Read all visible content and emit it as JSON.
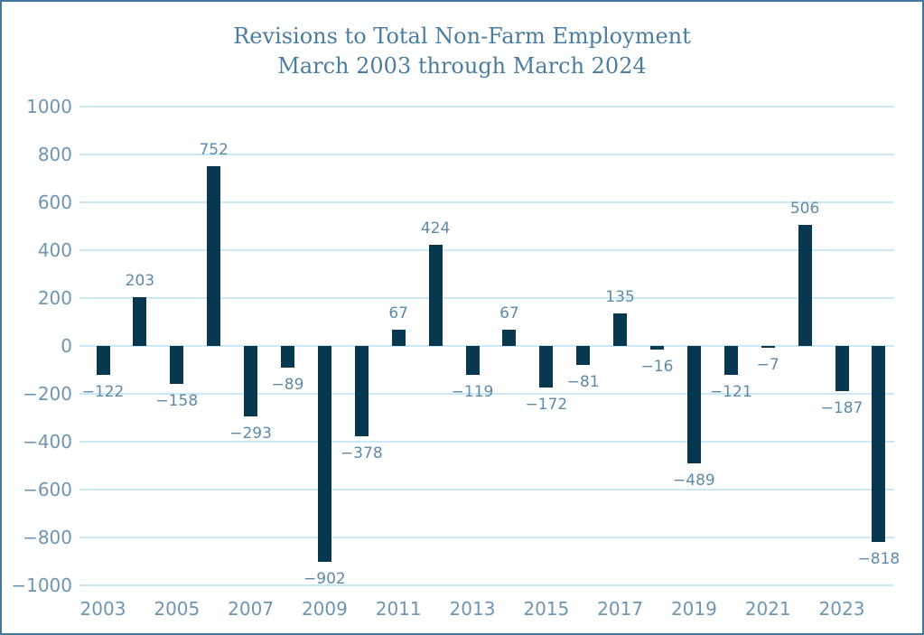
{
  "title": {
    "line1": "Revisions to Total Non-Farm Employment",
    "line2": "March 2003 through March 2024"
  },
  "chart_data": {
    "type": "bar",
    "title": "Revisions to Total Non-Farm Employment March 2003 through March 2024",
    "categories": [
      2003,
      2004,
      2005,
      2006,
      2007,
      2008,
      2009,
      2010,
      2011,
      2012,
      2013,
      2014,
      2015,
      2016,
      2017,
      2018,
      2019,
      2020,
      2021,
      2022,
      2023,
      2024
    ],
    "values": [
      -122,
      203,
      -158,
      752,
      -293,
      -89,
      -902,
      -378,
      67,
      424,
      -119,
      67,
      -172,
      -81,
      135,
      -16,
      -489,
      -121,
      -7,
      506,
      -187,
      -818
    ],
    "value_labels": [
      "−122",
      "203",
      "−158",
      "752",
      "−293",
      "−89",
      "−902",
      "−378",
      "67",
      "424",
      "−119",
      "67",
      "−172",
      "−81",
      "135",
      "−16",
      "−489",
      "−121",
      "−7",
      "506",
      "−187",
      "−818"
    ],
    "x_tick_labels": [
      "2003",
      "2005",
      "2007",
      "2009",
      "2011",
      "2013",
      "2015",
      "2017",
      "2019",
      "2021",
      "2023"
    ],
    "y_ticks": [
      1000,
      800,
      600,
      400,
      200,
      0,
      -200,
      -400,
      -600,
      -800,
      -1000
    ],
    "y_tick_labels": [
      "1000",
      "800",
      "600",
      "400",
      "200",
      "0",
      "−200",
      "−400",
      "−600",
      "−800",
      "−1000"
    ],
    "ylim": [
      -1000,
      1000
    ],
    "xlabel": "",
    "ylabel": "",
    "grid": true,
    "legend": "none",
    "colors": {
      "bar": "#083750",
      "grid": "#cbe8f6",
      "tick_label": "#6e96b1",
      "data_label": "#5e8aa8",
      "title": "#4b7d9e",
      "border": "#44789f",
      "background": "#ffffff"
    }
  }
}
